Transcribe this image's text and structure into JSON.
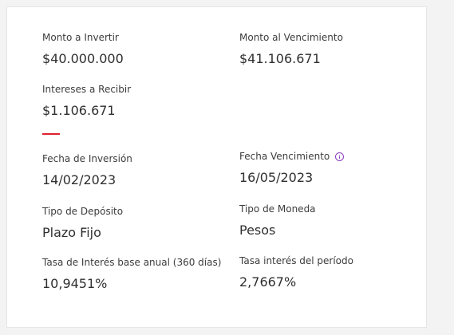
{
  "summary": {
    "monto_invertir": {
      "label": "Monto a Invertir",
      "value": "$40.000.000"
    },
    "monto_vencimiento": {
      "label": "Monto al Vencimiento",
      "value": "$41.106.671"
    },
    "intereses": {
      "label": "Intereses a Recibir",
      "value": "$1.106.671"
    }
  },
  "details": {
    "fecha_inversion": {
      "label": "Fecha de Inversión",
      "value": "14/02/2023"
    },
    "fecha_vencimiento": {
      "label": "Fecha Vencimiento",
      "value": "16/05/2023",
      "icon": "info-icon"
    },
    "tipo_deposito": {
      "label": "Tipo de Depósito",
      "value": "Plazo Fijo"
    },
    "tipo_moneda": {
      "label": "Tipo de Moneda",
      "value": "Pesos"
    },
    "tasa_anual": {
      "label": "Tasa de Interés base anual (360 días)",
      "value": "10,9451%"
    },
    "tasa_periodo": {
      "label": "Tasa interés del período",
      "value": "2,7667%"
    }
  },
  "colors": {
    "accent": "#e0202e",
    "info_icon": "#8b3fbf"
  }
}
